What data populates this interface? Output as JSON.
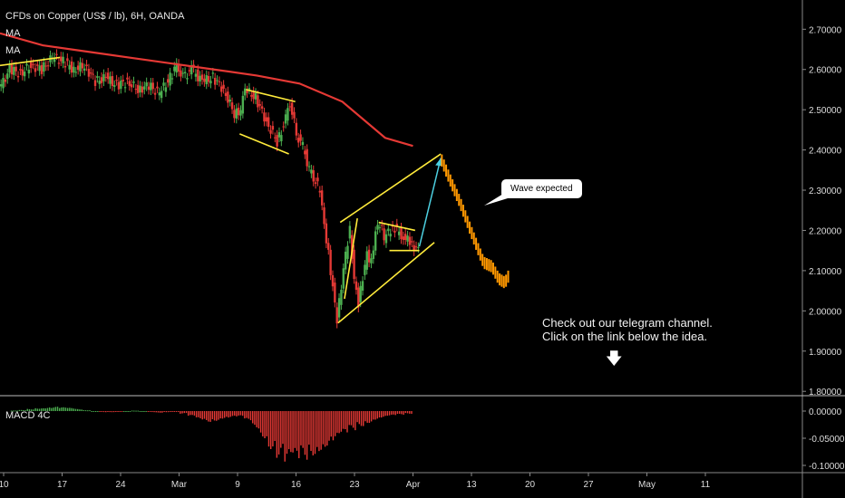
{
  "header": {
    "title": "CFDs on Copper (US$ / lb), 6H, OANDA",
    "indicators": [
      "MA",
      "MA"
    ]
  },
  "annotations": {
    "bubble": "Wave expected",
    "note_line1": "Check out our telegram channel.",
    "note_line2": "Click on the link below the idea."
  },
  "macd_label": "MACD 4C",
  "colors": {
    "background": "#000000",
    "up_candle": "#4caf50",
    "down_candle": "#e53935",
    "ma_line": "#e53935",
    "pattern_lines": "#ffeb3b",
    "projection": "#ff9800",
    "wave_arrow": "#4dd0e1",
    "macd_positive": "#4caf50",
    "macd_negative": "#e53935"
  },
  "chart_data": [
    {
      "type": "line",
      "title": "CFDs on Copper (US$ / lb), 6H, OANDA",
      "x_tick_labels": [
        "10",
        "17",
        "24",
        "Mar",
        "9",
        "16",
        "23",
        "Apr",
        "13",
        "20",
        "27",
        "May",
        "11"
      ],
      "y_tick_labels": [
        "2.70000",
        "2.60000",
        "2.50000",
        "2.40000",
        "2.30000",
        "2.20000",
        "2.10000",
        "2.00000",
        "1.90000",
        "1.80000"
      ],
      "ylim": [
        1.8,
        2.77
      ],
      "series": [
        {
          "name": "MA",
          "points": [
            [
              0,
              2.69
            ],
            [
              2,
              2.66
            ],
            [
              4,
              2.645
            ],
            [
              6,
              2.63
            ],
            [
              8,
              2.615
            ],
            [
              10,
              2.6
            ],
            [
              12,
              2.585
            ],
            [
              14,
              2.565
            ],
            [
              16,
              2.52
            ],
            [
              18,
              2.43
            ],
            [
              19.3,
              2.41
            ]
          ]
        }
      ],
      "price": [
        [
          0,
          2.55
        ],
        [
          0.5,
          2.6
        ],
        [
          1,
          2.59
        ],
        [
          1.5,
          2.61
        ],
        [
          2,
          2.6
        ],
        [
          2.5,
          2.63
        ],
        [
          3,
          2.62
        ],
        [
          3.5,
          2.6
        ],
        [
          4,
          2.61
        ],
        [
          4.5,
          2.57
        ],
        [
          5,
          2.58
        ],
        [
          5.5,
          2.56
        ],
        [
          6,
          2.57
        ],
        [
          6.5,
          2.55
        ],
        [
          7,
          2.56
        ],
        [
          7.5,
          2.54
        ],
        [
          8,
          2.58
        ],
        [
          8.3,
          2.61
        ],
        [
          8.6,
          2.58
        ],
        [
          9,
          2.6
        ],
        [
          9.5,
          2.57
        ],
        [
          10,
          2.58
        ],
        [
          10.5,
          2.55
        ],
        [
          11,
          2.49
        ],
        [
          11.3,
          2.5
        ],
        [
          11.5,
          2.55
        ],
        [
          12,
          2.53
        ],
        [
          12.5,
          2.47
        ],
        [
          13,
          2.42
        ],
        [
          13.3,
          2.46
        ],
        [
          13.6,
          2.52
        ],
        [
          13.9,
          2.44
        ],
        [
          14.2,
          2.41
        ],
        [
          14.5,
          2.35
        ],
        [
          15,
          2.3
        ],
        [
          15.2,
          2.21
        ],
        [
          15.4,
          2.14
        ],
        [
          15.6,
          2.06
        ],
        [
          15.8,
          1.98
        ],
        [
          16,
          2.06
        ],
        [
          16.2,
          2.14
        ],
        [
          16.4,
          2.2
        ],
        [
          16.6,
          2.08
        ],
        [
          16.8,
          2.02
        ],
        [
          17,
          2.08
        ],
        [
          17.2,
          2.14
        ],
        [
          17.4,
          2.12
        ],
        [
          17.6,
          2.2
        ],
        [
          17.8,
          2.22
        ],
        [
          18,
          2.18
        ],
        [
          18.4,
          2.21
        ],
        [
          18.8,
          2.19
        ],
        [
          19.2,
          2.17
        ],
        [
          19.6,
          2.15
        ]
      ],
      "projection": [
        [
          20.6,
          2.38
        ],
        [
          21,
          2.33
        ],
        [
          21.5,
          2.27
        ],
        [
          22,
          2.2
        ],
        [
          22.3,
          2.16
        ],
        [
          22.6,
          2.12
        ],
        [
          23,
          2.11
        ],
        [
          23.3,
          2.08
        ],
        [
          23.6,
          2.07
        ],
        [
          23.8,
          2.09
        ]
      ],
      "patterns": [
        [
          [
            0,
            2.61
          ],
          [
            2.8,
            2.63
          ]
        ],
        [
          [
            11.5,
            2.55
          ],
          [
            13.8,
            2.52
          ]
        ],
        [
          [
            11.2,
            2.44
          ],
          [
            13.5,
            2.39
          ]
        ],
        [
          [
            15.8,
            1.97
          ],
          [
            20.3,
            2.17
          ]
        ],
        [
          [
            15.9,
            2.22
          ],
          [
            20.6,
            2.39
          ]
        ],
        [
          [
            16.1,
            2.03
          ],
          [
            16.7,
            2.23
          ]
        ],
        [
          [
            17.7,
            2.22
          ],
          [
            19.4,
            2.2
          ]
        ],
        [
          [
            18.2,
            2.15
          ],
          [
            19.6,
            2.15
          ]
        ]
      ],
      "wave_arrow": [
        [
          19.6,
          2.16
        ],
        [
          20.6,
          2.38
        ]
      ]
    },
    {
      "type": "bar",
      "title": "MACD 4C",
      "y_tick_labels": [
        "0.00000",
        "-0.05000",
        "-0.10000"
      ],
      "ylim": [
        -0.11,
        0.015
      ],
      "values": [
        0.001,
        0.002,
        0.004,
        0.006,
        0.007,
        0.008,
        0.007,
        0.006,
        0.004,
        0.002,
        0.0,
        -0.002,
        -0.002,
        -0.001,
        0.0,
        0.001,
        0.0,
        -0.002,
        -0.003,
        -0.002,
        -0.001,
        -0.005,
        -0.01,
        -0.016,
        -0.02,
        -0.018,
        -0.014,
        -0.012,
        -0.011,
        -0.018,
        -0.032,
        -0.05,
        -0.07,
        -0.086,
        -0.1,
        -0.097,
        -0.09,
        -0.082,
        -0.074,
        -0.066,
        -0.056,
        -0.046,
        -0.036,
        -0.028,
        -0.022,
        -0.016,
        -0.012,
        -0.009,
        -0.007,
        -0.005
      ]
    }
  ]
}
